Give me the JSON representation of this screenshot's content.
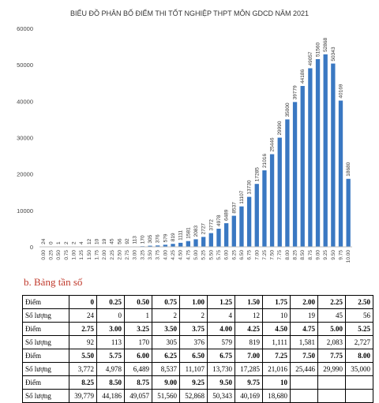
{
  "chart_data": {
    "type": "bar",
    "title": "BIỂU ĐỒ PHÂN BỐ ĐIỂM THI TỐT NGHIỆP THPT MÔN GDCD NĂM 2021",
    "xlabel": "",
    "ylabel": "",
    "ylim": [
      0,
      60000
    ],
    "yticks": [
      "0",
      "10000",
      "20000",
      "30000",
      "40000",
      "50000",
      "60000"
    ],
    "grid": false,
    "bar_color": "#3a78c2",
    "categories": [
      "0.00",
      "0.25",
      "0.50",
      "0.75",
      "1.00",
      "1.25",
      "1.50",
      "1.75",
      "2.00",
      "2.25",
      "2.50",
      "2.75",
      "3.00",
      "3.25",
      "3.50",
      "3.75",
      "4.00",
      "4.25",
      "4.50",
      "4.75",
      "5.00",
      "5.25",
      "5.50",
      "5.75",
      "6.00",
      "6.25",
      "6.50",
      "6.75",
      "7.00",
      "7.25",
      "7.50",
      "7.75",
      "8.00",
      "8.25",
      "8.50",
      "8.75",
      "9.00",
      "9.25",
      "9.50",
      "9.75",
      "10.00"
    ],
    "values": [
      24,
      0,
      1,
      2,
      2,
      4,
      12,
      10,
      19,
      45,
      56,
      92,
      113,
      170,
      305,
      376,
      579,
      819,
      1111,
      1581,
      2083,
      2727,
      3772,
      4978,
      6489,
      8537,
      11107,
      13730,
      17285,
      21016,
      25446,
      29990,
      35000,
      39779,
      44186,
      49057,
      51560,
      52868,
      50343,
      40169,
      18680
    ],
    "labels": [
      "24",
      "0",
      "1",
      "2",
      "2",
      "4",
      "12",
      "10",
      "19",
      "45",
      "56",
      "92",
      "113",
      "170",
      "305",
      "376",
      "579",
      "819",
      "1111",
      "1581",
      "2083",
      "2727",
      "3772",
      "4978",
      "6489",
      "8537",
      "11107",
      "13730",
      "17285",
      "21016",
      "25446",
      "29990",
      "35000",
      "39779",
      "44186",
      "49057",
      "51560",
      "52868",
      "50343",
      "40169",
      "18680"
    ]
  },
  "section_heading": "b.  Bảng tần số",
  "table": {
    "score_label": "Điểm",
    "count_label": "Số lượng",
    "rows": [
      {
        "scores": [
          "0",
          "0.25",
          "0.50",
          "0.75",
          "1.00",
          "1.25",
          "1.50",
          "1.75",
          "2.00",
          "2.25",
          "2.50"
        ],
        "counts": [
          "24",
          "0",
          "1",
          "2",
          "2",
          "4",
          "12",
          "10",
          "19",
          "45",
          "56"
        ]
      },
      {
        "scores": [
          "2.75",
          "3.00",
          "3.25",
          "3.50",
          "3.75",
          "4.00",
          "4.25",
          "4.50",
          "4.75",
          "5.00",
          "5.25"
        ],
        "counts": [
          "92",
          "113",
          "170",
          "305",
          "376",
          "579",
          "819",
          "1,111",
          "1,581",
          "2,083",
          "2,727"
        ]
      },
      {
        "scores": [
          "5.50",
          "5.75",
          "6.00",
          "6.25",
          "6.50",
          "6.75",
          "7.00",
          "7.25",
          "7.50",
          "7.75",
          "8.00"
        ],
        "counts": [
          "3,772",
          "4,978",
          "6,489",
          "8,537",
          "11,107",
          "13,730",
          "17,285",
          "21,016",
          "25,446",
          "29,990",
          "35,000"
        ]
      },
      {
        "scores": [
          "8.25",
          "8.50",
          "8.75",
          "9.00",
          "9.25",
          "9.50",
          "9.75",
          "10",
          "",
          ""
        ],
        "counts": [
          "39,779",
          "44,186",
          "49,057",
          "51,560",
          "52,868",
          "50,343",
          "40,169",
          "18,680",
          "",
          ""
        ]
      }
    ]
  }
}
